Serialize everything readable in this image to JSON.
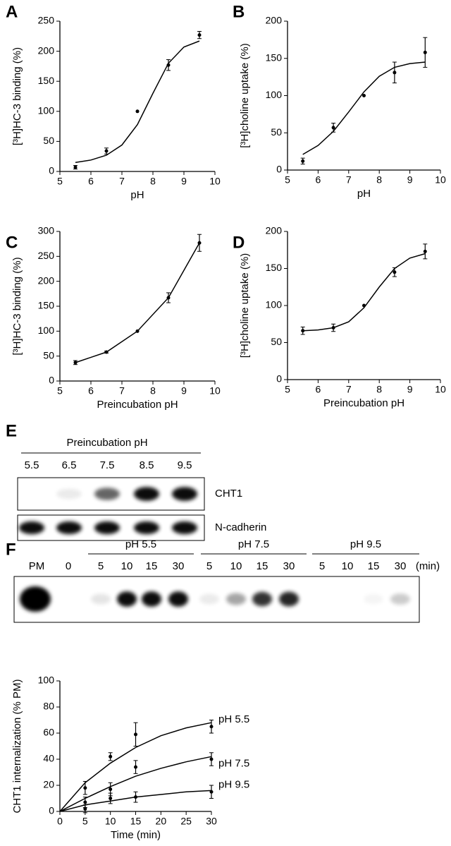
{
  "chart_data": [
    {
      "type": "scatter",
      "panel": "A",
      "xlabel": "pH",
      "ylabel": "[³H]HC-3 binding (%)",
      "color": "#000000",
      "xlim": [
        5,
        10
      ],
      "xticks": [
        5,
        6,
        7,
        8,
        9,
        10
      ],
      "ylim": [
        0,
        250
      ],
      "yticks": [
        0,
        50,
        100,
        150,
        200,
        250
      ],
      "series": [
        {
          "x": [
            5.5,
            6.5,
            7.5,
            8.5,
            9.5
          ],
          "values": [
            7,
            34,
            100,
            177,
            227
          ],
          "errors": [
            3,
            5,
            null,
            9,
            6
          ],
          "fit": {
            "x": [
              5.5,
              6,
              6.5,
              7,
              7.5,
              8,
              8.5,
              9,
              9.5
            ],
            "values": [
              15,
              19,
              27,
              44,
              78,
              130,
              180,
              207,
              217
            ]
          }
        }
      ]
    },
    {
      "type": "scatter",
      "panel": "B",
      "xlabel": "pH",
      "ylabel": "[³H]choline uptake (%)",
      "color": "#000000",
      "xlim": [
        5,
        10
      ],
      "xticks": [
        5,
        6,
        7,
        8,
        9,
        10
      ],
      "ylim": [
        0,
        200
      ],
      "yticks": [
        0,
        50,
        100,
        150,
        200
      ],
      "series": [
        {
          "x": [
            5.5,
            6.5,
            7.5,
            8.5,
            9.5
          ],
          "values": [
            12,
            57,
            100,
            131,
            158
          ],
          "errors": [
            4,
            6,
            null,
            14,
            20
          ],
          "fit": {
            "x": [
              5.5,
              6,
              6.5,
              7,
              7.5,
              8,
              8.5,
              9,
              9.5
            ],
            "values": [
              21,
              33,
              52,
              78,
              105,
              126,
              138,
              143,
              145
            ]
          }
        }
      ]
    },
    {
      "type": "line",
      "panel": "C",
      "xlabel": "Preincubation pH",
      "ylabel": "[³H]HC-3 binding (%)",
      "color": "#000000",
      "xlim": [
        5,
        10
      ],
      "xticks": [
        5,
        6,
        7,
        8,
        9,
        10
      ],
      "ylim": [
        0,
        300
      ],
      "yticks": [
        0,
        50,
        100,
        150,
        200,
        250,
        300
      ],
      "series": [
        {
          "x": [
            5.5,
            6.5,
            7.5,
            8.5,
            9.5
          ],
          "values": [
            37,
            58,
            100,
            167,
            277
          ],
          "errors": [
            4,
            2,
            null,
            10,
            17
          ]
        }
      ]
    },
    {
      "type": "scatter",
      "panel": "D",
      "xlabel": "Preincubation pH",
      "ylabel": "[³H]choline uptake (%)",
      "color": "#000000",
      "xlim": [
        5,
        10
      ],
      "xticks": [
        5,
        6,
        7,
        8,
        9,
        10
      ],
      "ylim": [
        0,
        200
      ],
      "yticks": [
        0,
        50,
        100,
        150,
        200
      ],
      "series": [
        {
          "x": [
            5.5,
            6.5,
            7.5,
            8.5,
            9.5
          ],
          "values": [
            66,
            70,
            100,
            145,
            173
          ],
          "errors": [
            5,
            5,
            null,
            6,
            10
          ],
          "fit": {
            "x": [
              5.5,
              6,
              6.5,
              7,
              7.5,
              8,
              8.5,
              9,
              9.5
            ],
            "values": [
              66,
              67,
              70,
              78,
              97,
              125,
              150,
              164,
              170
            ]
          }
        }
      ]
    },
    {
      "type": "scatter",
      "xlabel": "Time (min)",
      "ylabel": "CHT1 internalization (% PM)",
      "color": "#000000",
      "xlim": [
        0,
        30
      ],
      "xticks": [
        0,
        5,
        10,
        15,
        20,
        25,
        30
      ],
      "ylim": [
        0,
        100
      ],
      "yticks": [
        0,
        20,
        40,
        60,
        80,
        100
      ],
      "series": [
        {
          "name": "pH 5.5",
          "x": [
            5,
            10,
            15,
            30
          ],
          "values": [
            18,
            42,
            59,
            65
          ],
          "errors": [
            5,
            3,
            9,
            5
          ],
          "fit": {
            "x": [
              0,
              5,
              10,
              15,
              20,
              25,
              30
            ],
            "values": [
              0,
              22,
              37,
              49,
              58,
              64,
              68
            ]
          }
        },
        {
          "name": "pH 7.5",
          "x": [
            5,
            10,
            15,
            30
          ],
          "values": [
            7,
            17,
            34,
            40
          ],
          "errors": [
            4,
            5,
            5,
            5
          ],
          "fit": {
            "x": [
              0,
              5,
              10,
              15,
              20,
              25,
              30
            ],
            "values": [
              0,
              10,
              19,
              27,
              33,
              38,
              42
            ]
          }
        },
        {
          "name": "pH 9.5",
          "x": [
            5,
            10,
            15,
            30
          ],
          "values": [
            2,
            10,
            11,
            15
          ],
          "errors": [
            3,
            4,
            4,
            5
          ],
          "fit": {
            "x": [
              0,
              5,
              10,
              15,
              20,
              25,
              30
            ],
            "values": [
              0,
              5,
              8,
              11,
              13,
              15,
              16
            ]
          }
        }
      ]
    }
  ],
  "blot_e": {
    "panel": "E",
    "title": "Preincubation pH",
    "lanes": [
      "5.5",
      "6.5",
      "7.5",
      "8.5",
      "9.5"
    ],
    "rows": [
      "CHT1",
      "N-cadherin"
    ]
  },
  "blot_f": {
    "panel": "F",
    "lanes": [
      "PM",
      "0"
    ],
    "groups": [
      {
        "label": "pH 5.5",
        "lanes": [
          "5",
          "10",
          "15",
          "30"
        ]
      },
      {
        "label": "pH 7.5",
        "lanes": [
          "5",
          "10",
          "15",
          "30"
        ]
      },
      {
        "label": "pH 9.5",
        "lanes": [
          "5",
          "10",
          "15",
          "30"
        ]
      }
    ],
    "unit": "(min)"
  }
}
